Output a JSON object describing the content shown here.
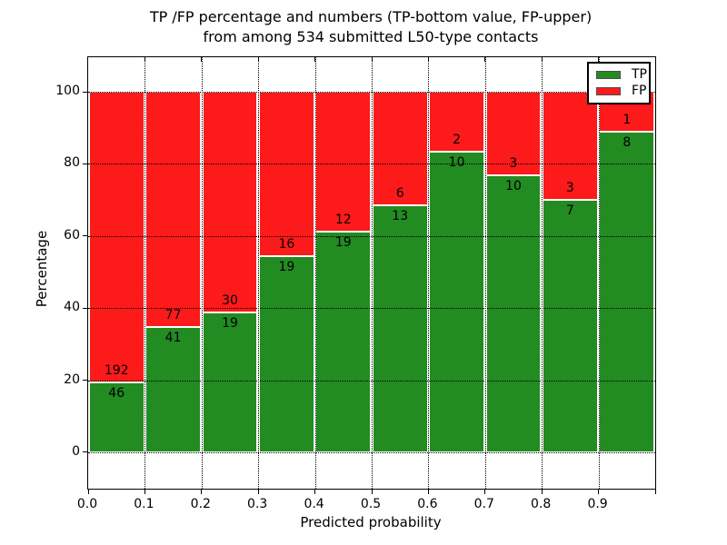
{
  "header": {
    "title_line1": "TP /FP percentage and numbers (TP-bottom value, FP-upper)",
    "title_line2": "from among 534 submitted L50-type contacts"
  },
  "axes": {
    "ylabel": "Percentage",
    "xlabel": "Predicted probability"
  },
  "legend": {
    "items": [
      {
        "label": "TP",
        "color": "#228b22"
      },
      {
        "label": "FP",
        "color": "#fc1a1a"
      }
    ]
  },
  "chart_data": {
    "type": "bar",
    "stacked": true,
    "title": "TP /FP percentage and numbers (TP-bottom value, FP-upper)\nfrom among 534 submitted L50-type contacts",
    "xlabel": "Predicted probability",
    "ylabel": "Percentage",
    "total_contacts": 534,
    "categories": [
      "0.0",
      "0.1",
      "0.2",
      "0.3",
      "0.4",
      "0.5",
      "0.6",
      "0.7",
      "0.8",
      "0.9"
    ],
    "bin_width": 0.1,
    "series": [
      {
        "name": "TP",
        "color": "#228b22",
        "counts": [
          46,
          41,
          19,
          19,
          19,
          13,
          10,
          10,
          7,
          8
        ],
        "percent": [
          19.3,
          34.7,
          38.8,
          54.3,
          61.3,
          68.4,
          83.3,
          76.9,
          70.0,
          88.9
        ]
      },
      {
        "name": "FP",
        "color": "#fc1a1a",
        "counts": [
          192,
          77,
          30,
          16,
          12,
          6,
          2,
          3,
          3,
          1
        ],
        "percent": [
          80.7,
          65.3,
          61.2,
          45.7,
          38.7,
          31.6,
          16.7,
          23.1,
          30.0,
          11.1
        ]
      }
    ],
    "xlim": [
      0,
      1
    ],
    "ylim": [
      -10.1,
      109.6
    ],
    "yticks": [
      0,
      20,
      40,
      60,
      80,
      100
    ],
    "xticks": [
      0.0,
      0.1,
      0.2,
      0.3,
      0.4,
      0.5,
      0.6,
      0.7,
      0.8,
      0.9
    ],
    "grid": "dotted",
    "bar_edge_color": "#ffffff",
    "legend_position": "upper right"
  }
}
